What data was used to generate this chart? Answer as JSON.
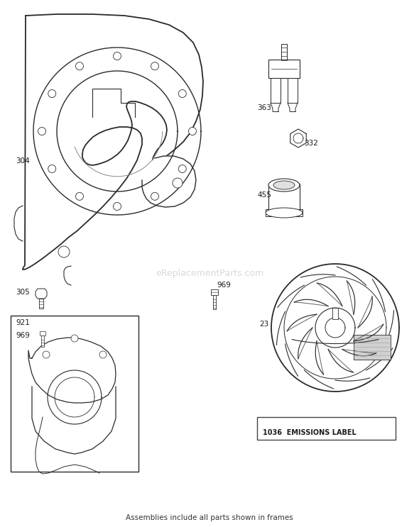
{
  "bg_color": "#ffffff",
  "line_color": "#2a2a2a",
  "footer_text": "Assemblies include all parts shown in frames",
  "watermark": "eReplacementParts.com",
  "fig_w": 5.9,
  "fig_h": 7.43,
  "dpi": 100
}
